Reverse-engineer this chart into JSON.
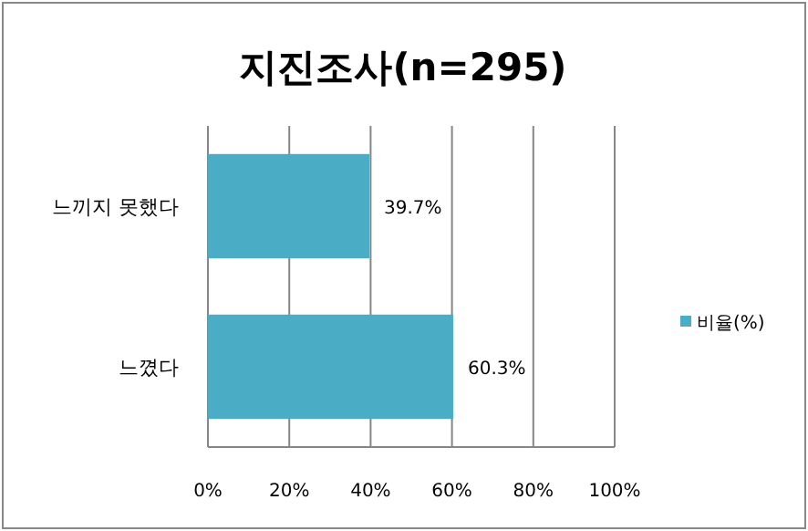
{
  "chart_data": {
    "type": "bar",
    "orientation": "horizontal",
    "title": "지진조사(n=295)",
    "categories": [
      "느끼지 못했다",
      "느꼈다"
    ],
    "series": [
      {
        "name": "비율(%)",
        "color": "#4bacc6",
        "values": [
          39.7,
          60.3
        ],
        "value_labels": [
          "39.7%",
          "60.3%"
        ]
      }
    ],
    "xlim": [
      0,
      100
    ],
    "xticks": [
      {
        "value": 0,
        "label": "0%"
      },
      {
        "value": 20,
        "label": "20%"
      },
      {
        "value": 40,
        "label": "40%"
      },
      {
        "value": 60,
        "label": "60%"
      },
      {
        "value": 80,
        "label": "80%"
      },
      {
        "value": 100,
        "label": "100%"
      }
    ],
    "grid": "x",
    "legend": "right"
  }
}
